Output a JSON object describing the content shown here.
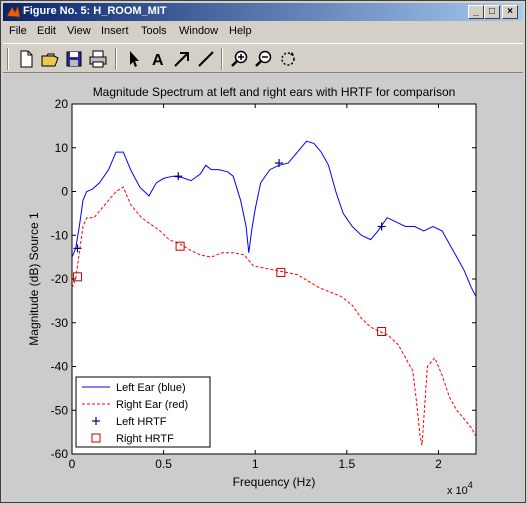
{
  "window": {
    "title": "Figure No. 5: H_ROOM_MIT",
    "minimize_label": "_",
    "maximize_label": "□",
    "close_label": "×"
  },
  "menubar": {
    "items": [
      {
        "label": "File"
      },
      {
        "label": "Edit"
      },
      {
        "label": "View"
      },
      {
        "label": "Insert"
      },
      {
        "label": "Tools"
      },
      {
        "label": "Window"
      },
      {
        "label": "Help"
      }
    ]
  },
  "toolbar": {
    "buttons": [
      "new-figure-icon",
      "open-file-icon",
      "save-icon",
      "print-icon",
      "select-arrow-icon",
      "insert-text-icon",
      "insert-arrow-icon",
      "insert-line-icon",
      "zoom-in-icon",
      "zoom-out-icon",
      "rotate-3d-icon"
    ]
  },
  "colors": {
    "left_ear": "#0000ff",
    "right_ear": "#ff0000",
    "title_bar_start": "#0a246a",
    "figure_bg": "#cccccc"
  },
  "chart_data": {
    "type": "line",
    "title": "Magnitude Spectrum at left and right ears with HRTF for comparison",
    "xlabel": "Frequency (Hz)",
    "ylabel": "Magnitude (dB) Source 1",
    "x_exponent_label": "x 10",
    "x_exponent_power": "4",
    "xlim": [
      0,
      22050
    ],
    "ylim": [
      -60,
      20
    ],
    "xticks": [
      0,
      5000,
      10000,
      15000,
      20000
    ],
    "xtick_labels": [
      "0",
      "0.5",
      "1",
      "1.5",
      "2"
    ],
    "yticks": [
      -60,
      -50,
      -40,
      -30,
      -20,
      -10,
      0,
      10,
      20
    ],
    "ytick_labels": [
      "-60",
      "-50",
      "-40",
      "-30",
      "-20",
      "-10",
      "0",
      "10",
      "20"
    ],
    "grid": false,
    "legend_position": "bottom-left",
    "legend": [
      {
        "label": "Left Ear (blue)",
        "style": "blue-solid"
      },
      {
        "label": "Right Ear (red)",
        "style": "red-dashed"
      },
      {
        "label": "Left HRTF",
        "style": "plus-marker"
      },
      {
        "label": "Right HRTF",
        "style": "square-marker"
      }
    ],
    "series": [
      {
        "name": "Left Ear (blue)",
        "x": [
          0,
          200,
          400,
          600,
          800,
          1100,
          1500,
          2000,
          2400,
          2800,
          3200,
          3700,
          4200,
          4600,
          5000,
          5500,
          6000,
          6500,
          7000,
          7300,
          7600,
          8000,
          8500,
          8800,
          9200,
          9500,
          9650,
          9800,
          10000,
          10300,
          10800,
          11300,
          11800,
          12300,
          12800,
          13200,
          13600,
          14000,
          14400,
          14800,
          15300,
          15800,
          16300,
          16700,
          17200,
          17700,
          18200,
          18700,
          19200,
          19700,
          20200,
          20600,
          21000,
          21400,
          21800,
          22050
        ],
        "values": [
          -15,
          -13,
          -8,
          -2,
          0,
          0.5,
          2,
          5,
          9,
          9,
          5,
          1,
          -1,
          2,
          3,
          3.5,
          3.2,
          2.5,
          4,
          6,
          5,
          5,
          4.5,
          3.5,
          -2,
          -8,
          -14,
          -9,
          -4,
          2,
          5,
          6,
          6.5,
          9,
          11.5,
          11,
          9,
          6,
          0,
          -5,
          -8,
          -10,
          -11,
          -9,
          -6,
          -7,
          -8,
          -8,
          -9,
          -8,
          -9,
          -12,
          -15,
          -18,
          -22,
          -24
        ]
      },
      {
        "name": "Right Ear (red)",
        "x": [
          0,
          200,
          400,
          600,
          800,
          1200,
          1600,
          2000,
          2400,
          2800,
          3200,
          3800,
          4300,
          4800,
          5300,
          5900,
          6500,
          7000,
          7600,
          8200,
          8800,
          9400,
          9900,
          10500,
          11100,
          11700,
          12300,
          12900,
          13500,
          14100,
          14700,
          15300,
          15800,
          16300,
          16800,
          17300,
          17800,
          18200,
          18600,
          18800,
          19000,
          19100,
          19400,
          19800,
          20200,
          20600,
          21000,
          21400,
          21800,
          22050
        ],
        "values": [
          -22,
          -20,
          -14,
          -8,
          -6,
          -6,
          -4,
          -2,
          0,
          1,
          -3,
          -6,
          -7.5,
          -9,
          -11,
          -12,
          -13.5,
          -14.5,
          -15,
          -14,
          -14,
          -14.5,
          -17,
          -17.5,
          -18,
          -18.5,
          -19,
          -20.5,
          -22,
          -23,
          -24,
          -26,
          -29,
          -31,
          -32,
          -33,
          -35,
          -38,
          -41,
          -48,
          -56,
          -58,
          -40,
          -38,
          -42,
          -47,
          -50,
          -52,
          -54,
          -56
        ]
      }
    ],
    "markers": [
      {
        "series": "Left HRTF",
        "shape": "plus",
        "x": [
          300,
          5800,
          11300,
          16900
        ],
        "values": [
          -13,
          3.5,
          6.5,
          -8
        ]
      },
      {
        "series": "Right HRTF",
        "shape": "square",
        "x": [
          300,
          5900,
          11400,
          16900
        ],
        "values": [
          -19.5,
          -12.5,
          -18.5,
          -32
        ]
      }
    ]
  }
}
